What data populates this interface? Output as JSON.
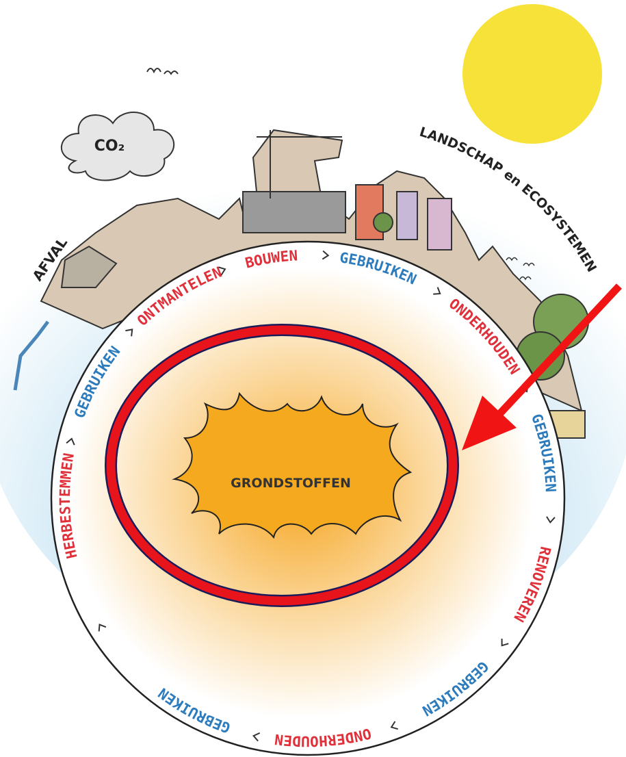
{
  "labels": {
    "co2": "CO₂",
    "afval": "AFVAL",
    "landschap": "LANDSCHAP en ECOSYSTEMEN",
    "center": "GRONDSTOFFEN"
  },
  "cycle": [
    "HERBESTEMMEN",
    "GEBRUIKEN",
    "ONTMANTELEN",
    "BOUWEN",
    "GEBRUIKEN",
    "ONDERHOUDEN",
    "GEBRUIKEN",
    "RENOVEREN",
    "GEBRUIKEN",
    "ONDERHOUDEN",
    "GEBRUIKEN"
  ]
}
